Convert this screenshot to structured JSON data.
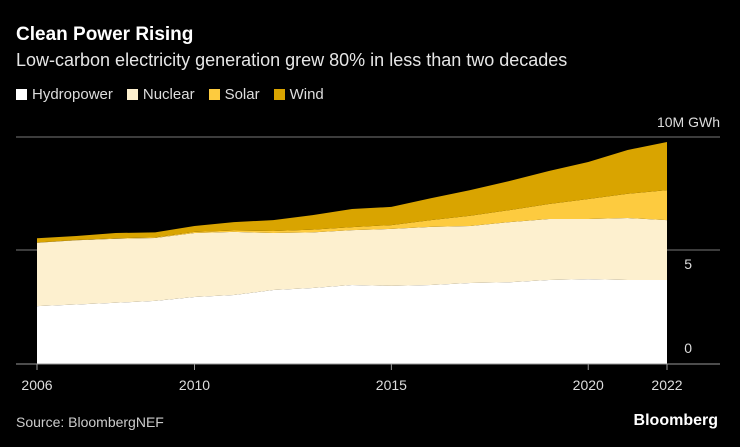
{
  "chart_data": {
    "type": "area",
    "stacked": true,
    "title": "Clean Power Rising",
    "subtitle": "Low-carbon electricity generation grew 80% in less than two decades",
    "unit_label": "10M GWh",
    "x": [
      2006,
      2007,
      2008,
      2009,
      2010,
      2011,
      2012,
      2013,
      2014,
      2015,
      2016,
      2017,
      2018,
      2019,
      2020,
      2021,
      2022
    ],
    "x_ticks": [
      "2006",
      "2010",
      "2015",
      "2020",
      "2022"
    ],
    "y_ticks": [
      "0",
      "5"
    ],
    "ylim": [
      0,
      10
    ],
    "series": [
      {
        "name": "Hydropower",
        "color": "#ffffff",
        "values": [
          2.55,
          2.62,
          2.7,
          2.78,
          2.95,
          3.04,
          3.26,
          3.35,
          3.48,
          3.44,
          3.48,
          3.57,
          3.6,
          3.7,
          3.74,
          3.7,
          3.7
        ]
      },
      {
        "name": "Nuclear",
        "color": "#fdf0cf",
        "values": [
          2.79,
          2.83,
          2.82,
          2.77,
          2.82,
          2.78,
          2.51,
          2.45,
          2.42,
          2.51,
          2.56,
          2.51,
          2.65,
          2.69,
          2.65,
          2.73,
          2.64
        ]
      },
      {
        "name": "Solar",
        "color": "#fdcb3f",
        "values": [
          0.01,
          0.01,
          0.02,
          0.03,
          0.05,
          0.06,
          0.09,
          0.12,
          0.13,
          0.17,
          0.3,
          0.45,
          0.53,
          0.66,
          0.88,
          1.07,
          1.32
        ]
      },
      {
        "name": "Wind",
        "color": "#d9a400",
        "values": [
          0.19,
          0.18,
          0.23,
          0.22,
          0.26,
          0.37,
          0.48,
          0.64,
          0.8,
          0.8,
          0.96,
          1.13,
          1.28,
          1.45,
          1.63,
          1.93,
          2.12
        ]
      }
    ],
    "grid": true,
    "legend": "top-left"
  },
  "source": "Source: BloombergNEF",
  "logo": "Bloomberg"
}
